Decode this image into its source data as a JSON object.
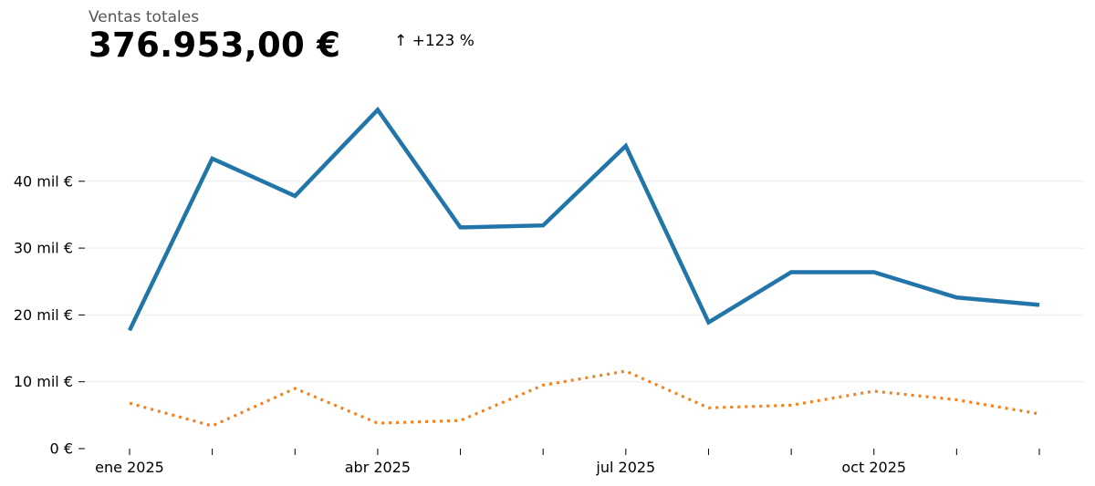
{
  "header": {
    "label": "Ventas totales",
    "total": "376.953,00 €",
    "change": "↑ +123 %"
  },
  "chart_data": {
    "type": "line",
    "title": "",
    "xlabel": "",
    "ylabel": "",
    "x": [
      "2025-01",
      "2025-02",
      "2025-03",
      "2025-04",
      "2025-05",
      "2025-06",
      "2025-07",
      "2025-08",
      "2025-09",
      "2025-10",
      "2025-11",
      "2025-12"
    ],
    "x_tick_labels": [
      "ene 2025",
      "",
      "",
      "abr 2025",
      "",
      "",
      "jul 2025",
      "",
      "",
      "oct 2025",
      "",
      ""
    ],
    "y_tick_values": [
      0,
      10000,
      20000,
      30000,
      40000
    ],
    "y_tick_labels": [
      "0 €",
      "10 mil €",
      "20 mil €",
      "30 mil €",
      "40 mil €"
    ],
    "ylim": [
      0,
      52000
    ],
    "grid": "horizontal",
    "legend": "none",
    "series": [
      {
        "color": "#2275a8",
        "style": "solid",
        "values": [
          17700,
          43400,
          37800,
          50700,
          33100,
          33400,
          45300,
          18900,
          26400,
          26400,
          22600,
          21500
        ]
      },
      {
        "color": "#f28220",
        "style": "dotted",
        "values": [
          6800,
          3400,
          9000,
          3800,
          4200,
          9500,
          11600,
          6100,
          6500,
          8600,
          7300,
          5200
        ]
      }
    ]
  }
}
